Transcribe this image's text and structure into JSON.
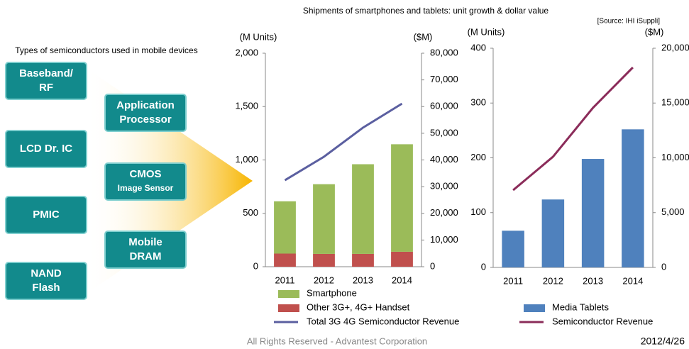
{
  "title": "Shipments of smartphones and tablets: unit growth & dollar value",
  "source": "[Source: IHI iSuppli]",
  "diagram": {
    "title": "Types of semiconductors used in mobile devices",
    "left_boxes": [
      {
        "lines": [
          "Baseband/",
          "RF"
        ]
      },
      {
        "lines": [
          "LCD Dr. IC"
        ]
      },
      {
        "lines": [
          "PMIC"
        ]
      },
      {
        "lines": [
          "NAND",
          "Flash"
        ]
      }
    ],
    "right_boxes": [
      {
        "lines": [
          "Application",
          "Processor"
        ]
      },
      {
        "lines": [
          "CMOS",
          "Image Sensor"
        ]
      },
      {
        "lines": [
          "Mobile",
          "DRAM"
        ]
      }
    ]
  },
  "footer": {
    "copyright": "All Rights Reserved - Advantest Corporation",
    "date": "2012/4/26"
  },
  "chart_data": [
    {
      "type": "bar",
      "stacked": true,
      "ylabel": "(M Units)",
      "y2label": "($M)",
      "categories": [
        "2011",
        "2012",
        "2013",
        "2014"
      ],
      "ylim": [
        0,
        2000
      ],
      "yticks": [
        0,
        500,
        {
          "value": 1000,
          "label": "1,000"
        },
        {
          "value": 1500,
          "label": "1,500"
        },
        {
          "value": 2000,
          "label": "2,000"
        }
      ],
      "y2lim": [
        0,
        80000
      ],
      "y2ticks": [
        0,
        {
          "value": 10000,
          "label": "10,000"
        },
        {
          "value": 20000,
          "label": "20,000"
        },
        {
          "value": 30000,
          "label": "30,000"
        },
        {
          "value": 40000,
          "label": "40,000"
        },
        {
          "value": 50000,
          "label": "50,000"
        },
        {
          "value": 60000,
          "label": "60,000"
        },
        {
          "value": 70000,
          "label": "70,000"
        },
        {
          "value": 80000,
          "label": "80,000"
        }
      ],
      "series": [
        {
          "name": "Smartphone",
          "color": "#9bbb59",
          "values": [
            490,
            653,
            840,
            1007
          ]
        },
        {
          "name": "Other 3G+, 4G+ Handset",
          "color": "#c0504d",
          "values": [
            123,
            120,
            120,
            140
          ]
        },
        {
          "name": "Total 3G 4G Semiconductor Revenue",
          "type": "line",
          "axis": "y2",
          "color": "#5b5fa0",
          "values": [
            32400,
            41200,
            52100,
            61100
          ]
        }
      ]
    },
    {
      "type": "bar",
      "ylabel": "(M Units)",
      "y2label": "($M)",
      "categories": [
        "2011",
        "2012",
        "2013",
        "2014"
      ],
      "ylim": [
        0,
        400
      ],
      "yticks": [
        0,
        100,
        200,
        300,
        400
      ],
      "y2lim": [
        0,
        20000
      ],
      "y2ticks": [
        0,
        {
          "value": 5000,
          "label": "5,000"
        },
        {
          "value": 10000,
          "label": "10,000"
        },
        {
          "value": 15000,
          "label": "15,000"
        },
        {
          "value": 20000,
          "label": "20,000"
        }
      ],
      "series": [
        {
          "name": "Media Tablets",
          "color": "#4f81bd",
          "values": [
            67,
            124,
            198,
            252
          ]
        },
        {
          "name": "Semiconductor Revenue",
          "type": "line",
          "axis": "y2",
          "color": "#8b2c5a",
          "values": [
            7050,
            10100,
            14560,
            18250
          ]
        }
      ]
    }
  ]
}
